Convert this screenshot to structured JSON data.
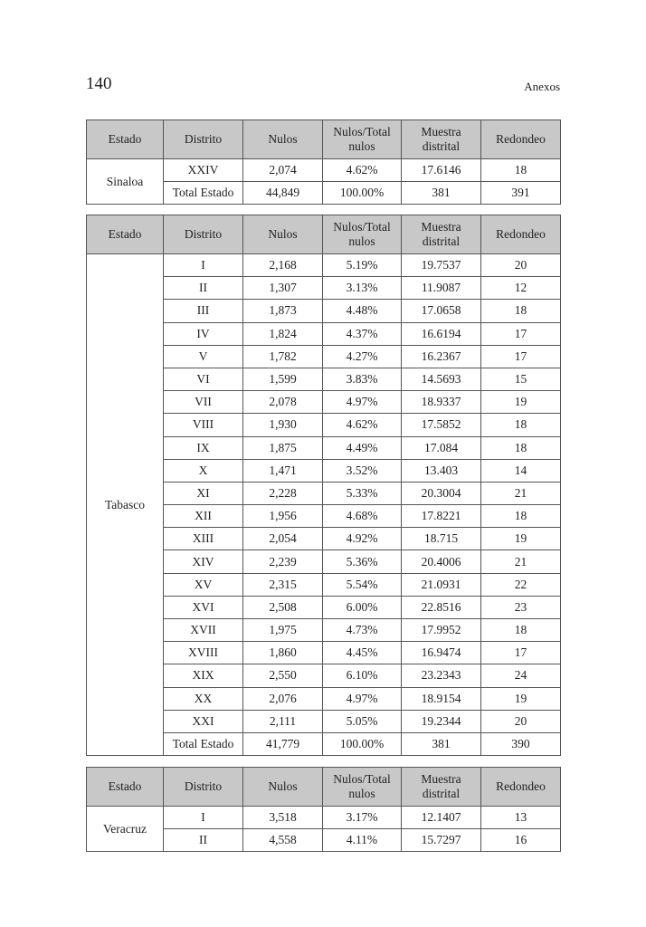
{
  "header": {
    "page_number": "140",
    "running_title": "Anexos"
  },
  "columns": [
    "Estado",
    "Distrito",
    "Nulos",
    "Nulos/Total nulos",
    "Muestra distrital",
    "Redondeo"
  ],
  "tables": [
    {
      "estado": "Sinaloa",
      "rows": [
        [
          "XXIV",
          "2,074",
          "4.62%",
          "17.6146",
          "18"
        ],
        [
          "Total Estado",
          "44,849",
          "100.00%",
          "381",
          "391"
        ]
      ]
    },
    {
      "estado": "Tabasco",
      "rows": [
        [
          "I",
          "2,168",
          "5.19%",
          "19.7537",
          "20"
        ],
        [
          "II",
          "1,307",
          "3.13%",
          "11.9087",
          "12"
        ],
        [
          "III",
          "1,873",
          "4.48%",
          "17.0658",
          "18"
        ],
        [
          "IV",
          "1,824",
          "4.37%",
          "16.6194",
          "17"
        ],
        [
          "V",
          "1,782",
          "4.27%",
          "16.2367",
          "17"
        ],
        [
          "VI",
          "1,599",
          "3.83%",
          "14.5693",
          "15"
        ],
        [
          "VII",
          "2,078",
          "4.97%",
          "18.9337",
          "19"
        ],
        [
          "VIII",
          "1,930",
          "4.62%",
          "17.5852",
          "18"
        ],
        [
          "IX",
          "1,875",
          "4.49%",
          "17.084",
          "18"
        ],
        [
          "X",
          "1,471",
          "3.52%",
          "13.403",
          "14"
        ],
        [
          "XI",
          "2,228",
          "5.33%",
          "20.3004",
          "21"
        ],
        [
          "XII",
          "1,956",
          "4.68%",
          "17.8221",
          "18"
        ],
        [
          "XIII",
          "2,054",
          "4.92%",
          "18.715",
          "19"
        ],
        [
          "XIV",
          "2,239",
          "5.36%",
          "20.4006",
          "21"
        ],
        [
          "XV",
          "2,315",
          "5.54%",
          "21.0931",
          "22"
        ],
        [
          "XVI",
          "2,508",
          "6.00%",
          "22.8516",
          "23"
        ],
        [
          "XVII",
          "1,975",
          "4.73%",
          "17.9952",
          "18"
        ],
        [
          "XVIII",
          "1,860",
          "4.45%",
          "16.9474",
          "17"
        ],
        [
          "XIX",
          "2,550",
          "6.10%",
          "23.2343",
          "24"
        ],
        [
          "XX",
          "2,076",
          "4.97%",
          "18.9154",
          "19"
        ],
        [
          "XXI",
          "2,111",
          "5.05%",
          "19.2344",
          "20"
        ],
        [
          "Total Estado",
          "41,779",
          "100.00%",
          "381",
          "390"
        ]
      ]
    },
    {
      "estado": "Veracruz",
      "rows": [
        [
          "I",
          "3,518",
          "3.17%",
          "12.1407",
          "13"
        ],
        [
          "II",
          "4,558",
          "4.11%",
          "15.7297",
          "16"
        ]
      ]
    }
  ]
}
